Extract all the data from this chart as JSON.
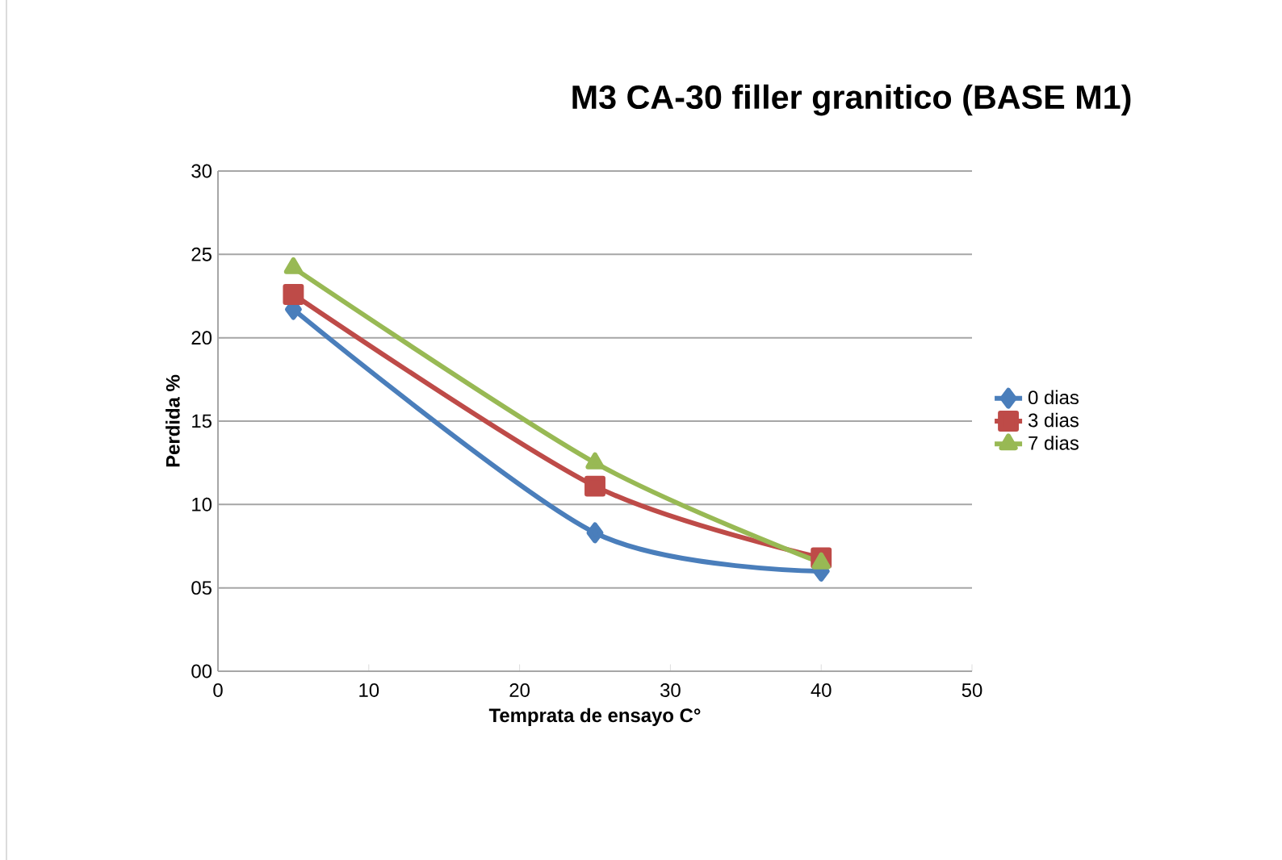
{
  "chart_data": {
    "type": "line",
    "title": "M3 CA-30 filler granitico (BASE M1)",
    "xlabel": "Temprata de ensayo C°",
    "ylabel": "Perdida %",
    "x": [
      5,
      25,
      40
    ],
    "series": [
      {
        "name": "0 dias",
        "color": "#4a7ebb",
        "marker": "diamond",
        "values": [
          21.7,
          8.3,
          6.0
        ]
      },
      {
        "name": "3 dias",
        "color": "#be4b48",
        "marker": "square",
        "values": [
          22.6,
          11.1,
          6.8
        ]
      },
      {
        "name": "7 dias",
        "color": "#98b954",
        "marker": "triangle",
        "values": [
          24.2,
          12.5,
          6.5
        ]
      }
    ],
    "xlim": [
      0,
      50
    ],
    "xticks": [
      0,
      10,
      20,
      30,
      40,
      50
    ],
    "ylim": [
      0,
      30
    ],
    "yticks": [
      {
        "value": 0,
        "label": "00"
      },
      {
        "value": 5,
        "label": "05"
      },
      10,
      15,
      20,
      25,
      30
    ],
    "grid": "y",
    "legend": "right"
  }
}
